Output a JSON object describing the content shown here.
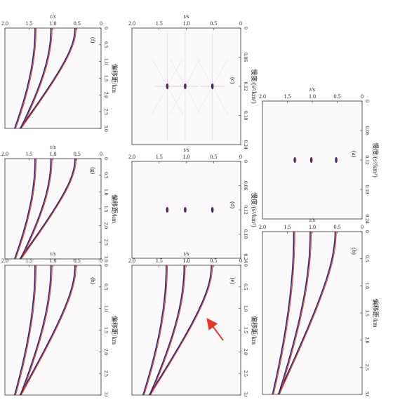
{
  "figure": {
    "panels": [
      {
        "id": "a",
        "label": "(a)",
        "domain": "velocity",
        "xlabel": "慢度/(s²/km²)",
        "ylabel": "t/s",
        "xticks": [
          "0",
          "0.06",
          "0.12",
          "0.18",
          "0.24"
        ],
        "yticks": [
          "2.0",
          "1.5",
          "1.0",
          "0.5",
          "0"
        ]
      },
      {
        "id": "b",
        "label": "(b)",
        "domain": "offset",
        "xlabel": "偏移距/km",
        "ylabel": "t/s",
        "xticks": [
          "0",
          "0.5",
          "1.0",
          "1.5",
          "2.0",
          "2.5",
          "3.0"
        ],
        "yticks": [
          "2.0",
          "1.5",
          "1.0",
          "0.5",
          "0"
        ]
      },
      {
        "id": "c",
        "label": "(c)",
        "domain": "velocity",
        "xlabel": "慢度/(s²/km²)",
        "ylabel": "t/s",
        "xticks": [
          "0",
          "0.06",
          "0.12",
          "0.18",
          "0.24"
        ],
        "yticks": [
          "2.0",
          "1.5",
          "1.0",
          "0.5",
          "0"
        ]
      },
      {
        "id": "d",
        "label": "(d)",
        "domain": "velocity",
        "xlabel": "慢度/(s²/km²)",
        "ylabel": "t/s",
        "xticks": [
          "0",
          "0.06",
          "0.12",
          "0.18",
          "0.24"
        ],
        "yticks": [
          "2.0",
          "1.5",
          "1.0",
          "0.5",
          "0"
        ]
      },
      {
        "id": "e",
        "label": "(e)",
        "domain": "offset",
        "xlabel": "偏移距/km",
        "ylabel": "t/s",
        "xticks": [
          "0",
          "0.5",
          "1.0",
          "1.5",
          "2.0",
          "2.5",
          "3.0"
        ],
        "yticks": [
          "2.0",
          "1.5",
          "1.0",
          "0.5",
          "0"
        ]
      },
      {
        "id": "f",
        "label": "(f)",
        "domain": "offset",
        "xlabel": "偏移距/km",
        "ylabel": "t/s",
        "xticks": [
          "0",
          "0.5",
          "1.0",
          "1.5",
          "2.0",
          "2.5",
          "3.0"
        ],
        "yticks": [
          "2.0",
          "1.5",
          "1.0",
          "0.5",
          "0"
        ]
      },
      {
        "id": "g",
        "label": "(g)",
        "domain": "offset",
        "xlabel": "偏移距/km",
        "ylabel": "t/s",
        "xticks": [
          "0",
          "0.5",
          "1.0",
          "1.5",
          "2.0",
          "2.5",
          "3.0"
        ],
        "yticks": [
          "2.0",
          "1.5",
          "1.0",
          "0.5",
          "0"
        ]
      },
      {
        "id": "h",
        "label": "(h)",
        "domain": "offset",
        "xlabel": "偏移距/km",
        "ylabel": "t/s",
        "xticks": [
          "0",
          "0.5",
          "1.0",
          "1.5",
          "2.0",
          "2.5",
          "3.0"
        ],
        "yticks": [
          "2.0",
          "1.5",
          "1.0",
          "0.5",
          "0"
        ]
      }
    ],
    "event_times_s": [
      0.52,
      1.02,
      1.35
    ],
    "velocity_peaks_slowness": [
      0.12,
      0.12,
      0.12
    ],
    "colors": {
      "positive": "#d8332f",
      "negative": "#26266b",
      "annotation_arrow": "#e03a2f",
      "background": "#fbf9f9"
    }
  }
}
